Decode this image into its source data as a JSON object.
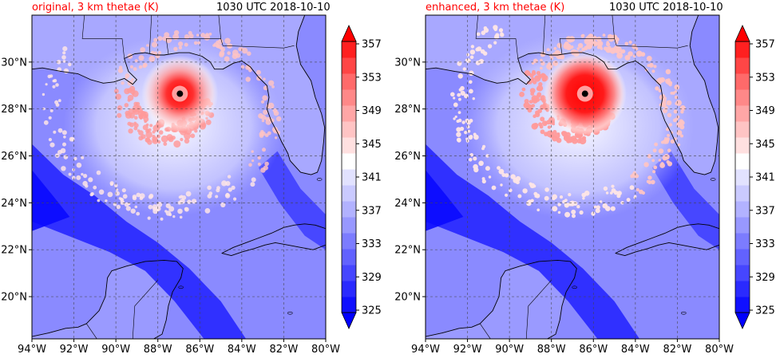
{
  "panels": [
    {
      "id": "original",
      "title_left": "original, 3 km thetae (K)",
      "title_right": "1030 UTC 2018-10-10",
      "eye_lon": -86.95,
      "eye_lat": 28.65,
      "core_intensity": 0.72
    },
    {
      "id": "enhanced",
      "title_left": "enhanced, 3 km thetae (K)",
      "title_right": "1030 UTC 2018-10-10",
      "eye_lon": -86.4,
      "eye_lat": 28.65,
      "core_intensity": 1.0
    }
  ],
  "map_extent": {
    "lon": [
      -94,
      -80
    ],
    "lat": [
      18.2,
      32
    ]
  },
  "x_ticks": [
    {
      "value": -94,
      "label": "94°W"
    },
    {
      "value": -92,
      "label": "92°W"
    },
    {
      "value": -90,
      "label": "90°W"
    },
    {
      "value": -88,
      "label": "88°W"
    },
    {
      "value": -86,
      "label": "86°W"
    },
    {
      "value": -84,
      "label": "84°W"
    },
    {
      "value": -82,
      "label": "82°W"
    },
    {
      "value": -80,
      "label": "80°W"
    }
  ],
  "y_ticks": [
    {
      "value": 20,
      "label": "20°N"
    },
    {
      "value": 22,
      "label": "22°N"
    },
    {
      "value": 24,
      "label": "24°N"
    },
    {
      "value": 26,
      "label": "26°N"
    },
    {
      "value": 28,
      "label": "28°N"
    },
    {
      "value": 30,
      "label": "30°N"
    }
  ],
  "colorbar": {
    "levels": [
      325,
      327,
      329,
      331,
      333,
      335,
      337,
      339,
      341,
      343,
      345,
      347,
      349,
      351,
      353,
      355,
      357
    ],
    "tick_labels": [
      "325",
      "329",
      "333",
      "337",
      "341",
      "345",
      "349",
      "353",
      "357"
    ],
    "colors": [
      "#1010ff",
      "#2a2aff",
      "#4646ff",
      "#6262ff",
      "#7c7cff",
      "#9898ff",
      "#b2b2ff",
      "#cacaff",
      "#e2e2ff",
      "#ffffff",
      "#ffe0e0",
      "#ffc4c4",
      "#ffa6a6",
      "#ff8888",
      "#ff6a6a",
      "#ff4646",
      "#ff2020",
      "#ff0000"
    ],
    "under_color": "#0000ff",
    "over_color": "#ff0000"
  },
  "colors": {
    "background_field": "#8a8aff",
    "land_field": "#a8a8ff",
    "deep_blue": "#2020ff",
    "gridline": "#444444",
    "coastline": "#000000",
    "eye": "#000000"
  }
}
